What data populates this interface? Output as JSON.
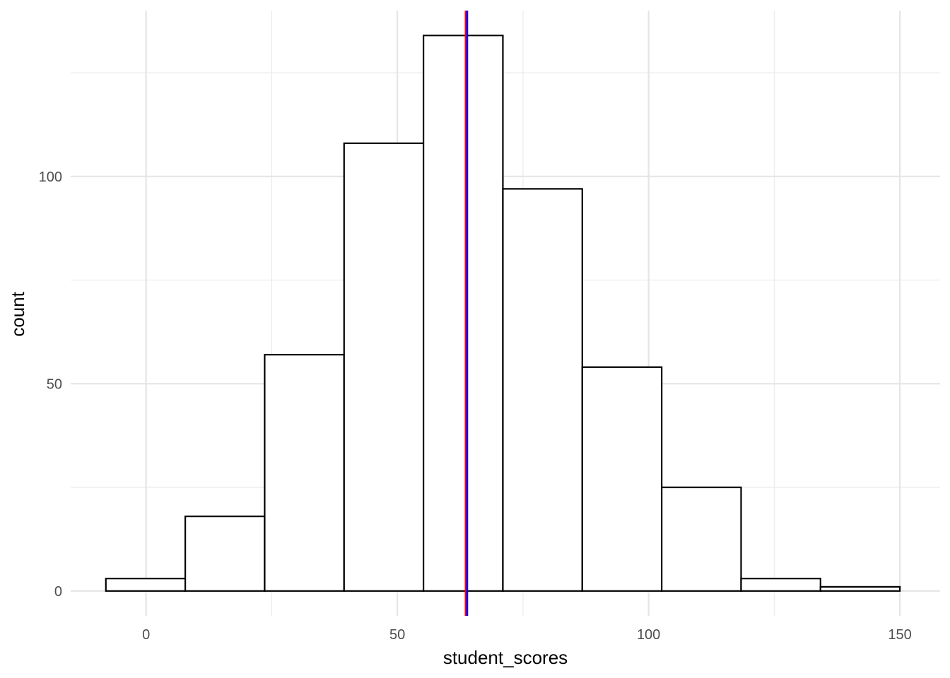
{
  "chart_data": {
    "type": "bar",
    "subtype": "histogram",
    "xlabel": "student_scores",
    "ylabel": "count",
    "x_ticks": [
      0,
      50,
      100,
      150
    ],
    "y_ticks": [
      0,
      50,
      100
    ],
    "xlim": [
      -15,
      158
    ],
    "ylim": [
      -6,
      140
    ],
    "bins": [
      {
        "x0": -8,
        "x1": 7.8,
        "count": 3
      },
      {
        "x0": 7.8,
        "x1": 23.6,
        "count": 18
      },
      {
        "x0": 23.6,
        "x1": 39.4,
        "count": 57
      },
      {
        "x0": 39.4,
        "x1": 55.2,
        "count": 108
      },
      {
        "x0": 55.2,
        "x1": 71,
        "count": 134
      },
      {
        "x0": 71,
        "x1": 86.8,
        "count": 97
      },
      {
        "x0": 86.8,
        "x1": 102.6,
        "count": 54
      },
      {
        "x0": 102.6,
        "x1": 118.4,
        "count": 25
      },
      {
        "x0": 118.4,
        "x1": 134.2,
        "count": 3
      },
      {
        "x0": 134.2,
        "x1": 150,
        "count": 1
      }
    ],
    "vlines": [
      {
        "x": 63.6,
        "color": "#ff0000"
      },
      {
        "x": 63.9,
        "color": "#0000ff"
      }
    ],
    "grid": true,
    "bar_fill": "#ffffff",
    "bar_outline": "#000000"
  }
}
